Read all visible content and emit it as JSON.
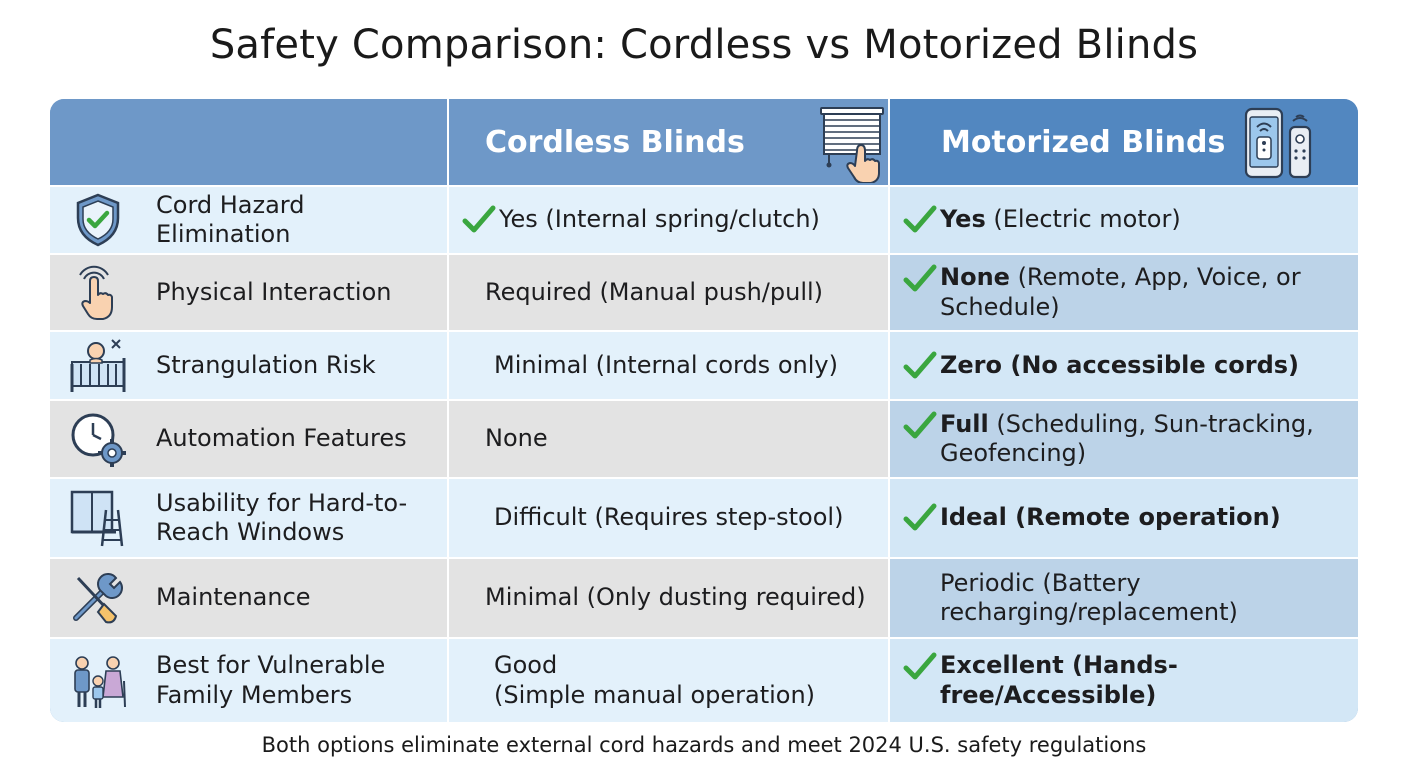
{
  "title": "Safety Comparison: Cordless vs Motorized Blinds",
  "columns": {
    "cordless": "Cordless Blinds",
    "motorized": "Motorized Blinds"
  },
  "icons": {
    "cordless_header": "window-blind-hand-icon",
    "motorized_header": "phone-remote-icon",
    "check": "green-checkmark-icon"
  },
  "colors": {
    "header_light": "#6e98c8",
    "header_dark": "#5287c0",
    "check_green": "#3aa63f",
    "row_blue": "#e3f1fb",
    "row_gray": "#e3e3e3",
    "motor_blue": "#d3e7f6",
    "motor_dark": "#bcd3e8"
  },
  "rows": [
    {
      "icon": "shield-check-icon",
      "feature": [
        "Cord Hazard",
        "Elimination"
      ],
      "cordless": {
        "check": true,
        "lines": [
          "Yes (Internal spring/clutch)"
        ]
      },
      "motorized": {
        "check": true,
        "bold": "Yes",
        "rest": " (Electric motor)"
      }
    },
    {
      "icon": "hand-tap-icon",
      "feature": [
        "Physical Interaction"
      ],
      "cordless": {
        "check": false,
        "lines": [
          "Required (Manual push/pull)"
        ]
      },
      "motorized": {
        "check": true,
        "bold": "None",
        "rest": " (Remote, App, Voice, or Schedule)"
      }
    },
    {
      "icon": "baby-crib-icon",
      "feature": [
        "Strangulation Risk"
      ],
      "cordless": {
        "check": false,
        "lines": [
          "Minimal (Internal cords only)"
        ]
      },
      "motorized": {
        "check": true,
        "bold": "Zero (No accessible cords)",
        "rest": ""
      }
    },
    {
      "icon": "clock-gear-icon",
      "feature": [
        "Automation Features"
      ],
      "cordless": {
        "check": false,
        "lines": [
          "None"
        ]
      },
      "motorized": {
        "check": true,
        "bold": "Full",
        "rest": " (Scheduling, Sun-tracking, Geofencing)"
      }
    },
    {
      "icon": "window-ladder-icon",
      "feature": [
        "Usability for Hard-to-",
        "Reach Windows"
      ],
      "cordless": {
        "check": false,
        "lines": [
          "Difficult (Requires step-stool)"
        ]
      },
      "motorized": {
        "check": true,
        "bold": "Ideal (Remote operation)",
        "rest": ""
      }
    },
    {
      "icon": "tools-brush-icon",
      "feature": [
        "Maintenance"
      ],
      "cordless": {
        "check": false,
        "lines": [
          "Minimal (Only dusting required)"
        ]
      },
      "motorized": {
        "check": false,
        "bold": "",
        "rest": "Periodic (Battery recharging/replacement)"
      }
    },
    {
      "icon": "family-icon",
      "feature": [
        "Best for Vulnerable",
        "Family Members"
      ],
      "cordless": {
        "check": false,
        "lines": [
          "Good",
          "(Simple manual operation)"
        ]
      },
      "motorized": {
        "check": true,
        "bold": "Excellent (Hands-free/Accessible)",
        "rest": ""
      }
    }
  ],
  "footer": "Both options eliminate external cord hazards and meet 2024 U.S. safety regulations"
}
